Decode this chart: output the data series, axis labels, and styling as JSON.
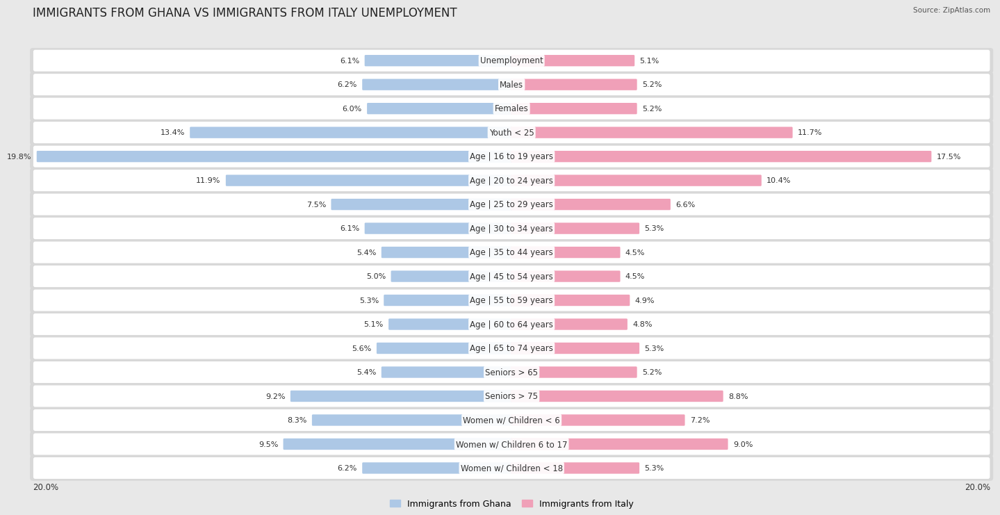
{
  "title": "IMMIGRANTS FROM GHANA VS IMMIGRANTS FROM ITALY UNEMPLOYMENT",
  "source": "Source: ZipAtlas.com",
  "categories": [
    "Unemployment",
    "Males",
    "Females",
    "Youth < 25",
    "Age | 16 to 19 years",
    "Age | 20 to 24 years",
    "Age | 25 to 29 years",
    "Age | 30 to 34 years",
    "Age | 35 to 44 years",
    "Age | 45 to 54 years",
    "Age | 55 to 59 years",
    "Age | 60 to 64 years",
    "Age | 65 to 74 years",
    "Seniors > 65",
    "Seniors > 75",
    "Women w/ Children < 6",
    "Women w/ Children 6 to 17",
    "Women w/ Children < 18"
  ],
  "ghana_values": [
    6.1,
    6.2,
    6.0,
    13.4,
    19.8,
    11.9,
    7.5,
    6.1,
    5.4,
    5.0,
    5.3,
    5.1,
    5.6,
    5.4,
    9.2,
    8.3,
    9.5,
    6.2
  ],
  "italy_values": [
    5.1,
    5.2,
    5.2,
    11.7,
    17.5,
    10.4,
    6.6,
    5.3,
    4.5,
    4.5,
    4.9,
    4.8,
    5.3,
    5.2,
    8.8,
    7.2,
    9.0,
    5.3
  ],
  "ghana_color": "#adc8e6",
  "italy_color": "#f0a0b8",
  "ghana_label": "Immigrants from Ghana",
  "italy_label": "Immigrants from Italy",
  "axis_limit": 20.0,
  "bg_color": "#e8e8e8",
  "title_fontsize": 12,
  "label_fontsize": 8.5,
  "value_fontsize": 8,
  "axis_fontsize": 8.5
}
